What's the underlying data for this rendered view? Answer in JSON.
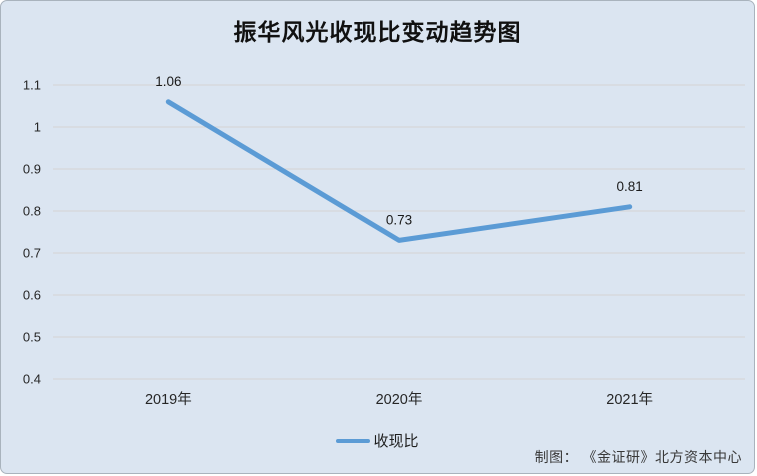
{
  "title": "振华风光收现比变动趋势图",
  "legend": {
    "label": "收现比"
  },
  "attribution": "制图： 《金证研》北方资本中心",
  "colors": {
    "card_background": "#dbe5f1",
    "card_border": "#a9b3bd",
    "series_line": "#5b9bd5",
    "gridline": "#d4d4d2",
    "axis_text": "#262626",
    "data_label_text": "#1a1a1a",
    "title_text": "#111111"
  },
  "chart_data": {
    "type": "line",
    "title": "振华风光收现比变动趋势图",
    "categories": [
      "2019年",
      "2020年",
      "2021年"
    ],
    "series": [
      {
        "name": "收现比",
        "values": [
          1.06,
          0.73,
          0.81
        ]
      }
    ],
    "data_labels": [
      "1.06",
      "0.73",
      "0.81"
    ],
    "xlabel": "",
    "ylabel": "",
    "ylim": [
      0.4,
      1.1
    ],
    "ytick_labels": [
      "1.1",
      "1",
      "0.9",
      "0.8",
      "0.7",
      "0.6",
      "0.5",
      "0.4"
    ],
    "ytick_values": [
      1.1,
      1.0,
      0.9,
      0.8,
      0.7,
      0.6,
      0.5,
      0.4
    ],
    "grid": true,
    "legend_position": "bottom"
  }
}
